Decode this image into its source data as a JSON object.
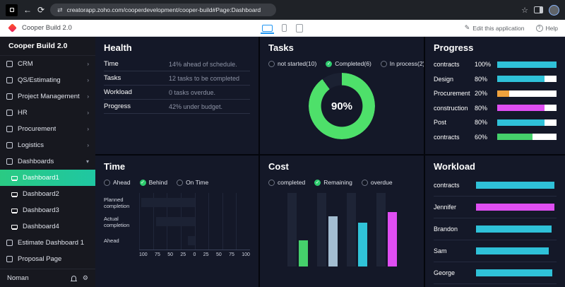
{
  "browser": {
    "url": "creatorapp.zoho.com/cooperdevelopment/cooper-build#Page:Dashboard"
  },
  "appbar": {
    "title": "Cooper Build 2.0",
    "edit_label": "Edit this application",
    "help_label": "Help"
  },
  "sidebar": {
    "title": "Cooper Build 2.0",
    "items": [
      {
        "label": "CRM",
        "icon": "crm-icon"
      },
      {
        "label": "QS/Estimating",
        "icon": "estimating-icon"
      },
      {
        "label": "Project Management",
        "icon": "project-management-icon"
      },
      {
        "label": "HR",
        "icon": "hr-icon"
      },
      {
        "label": "Procurement",
        "icon": "procurement-icon"
      },
      {
        "label": "Logistics",
        "icon": "logistics-icon"
      },
      {
        "label": "Dashboards",
        "icon": "dashboards-icon",
        "expanded": true
      }
    ],
    "dashboards": [
      {
        "label": "Dashboard1",
        "active": true
      },
      {
        "label": "Dashboard2",
        "active": false
      },
      {
        "label": "Dashboard3",
        "active": false
      },
      {
        "label": "Dashboard4",
        "active": false
      }
    ],
    "pages": [
      {
        "label": "Estimate Dashboard 1"
      },
      {
        "label": "Proposal Page"
      }
    ],
    "user": "Noman"
  },
  "panels": {
    "health": {
      "title": "Health",
      "rows": [
        {
          "label": "Time",
          "value": "14% ahead of schedule."
        },
        {
          "label": "Tasks",
          "value": "12 tasks to be completed"
        },
        {
          "label": "Workload",
          "value": "0 tasks overdue."
        },
        {
          "label": "Progress",
          "value": "42% under budget."
        }
      ]
    },
    "tasks": {
      "title": "Tasks",
      "options": [
        {
          "label": "not started(10)",
          "selected": false
        },
        {
          "label": "Completed(6)",
          "selected": true
        },
        {
          "label": "In process(2)",
          "selected": false
        }
      ],
      "donut": {
        "percent": 90,
        "label": "90%",
        "color": "#4ee06a",
        "track": "#1b2132"
      }
    },
    "progress": {
      "title": "Progress",
      "rows": [
        {
          "label": "contracts",
          "percent": "100%",
          "value": 100,
          "color": "#2fc1d8"
        },
        {
          "label": "Design",
          "percent": "80%",
          "value": 80,
          "color": "#2fc1d8"
        },
        {
          "label": "Procurement",
          "percent": "20%",
          "value": 20,
          "color": "#f0a23d"
        },
        {
          "label": "construction",
          "percent": "80%",
          "value": 80,
          "color": "#df4ef2"
        },
        {
          "label": "Post",
          "percent": "80%",
          "value": 80,
          "color": "#2fc1d8"
        },
        {
          "label": "contracts",
          "percent": "60%",
          "value": 60,
          "color": "#45d06b"
        }
      ]
    },
    "time": {
      "title": "Time",
      "options": [
        {
          "label": "Ahead",
          "selected": false
        },
        {
          "label": "Behind",
          "selected": true
        },
        {
          "label": "On Time",
          "selected": false
        }
      ],
      "categories": [
        "Planned completion",
        "Actual completion",
        "Ahead"
      ],
      "values": [
        -96,
        -70,
        -12
      ],
      "bar_color": "#1c2234",
      "ticks": [
        "100",
        "75",
        "50",
        "25",
        "0",
        "25",
        "50",
        "75",
        "100"
      ]
    },
    "cost": {
      "title": "Cost",
      "options": [
        {
          "label": "completed",
          "selected": false
        },
        {
          "label": "Remaining",
          "selected": true
        },
        {
          "label": "overdue",
          "selected": false
        }
      ],
      "total_color": "#1e2436",
      "groups": [
        {
          "total": 100,
          "value": 36,
          "color": "#45d06b"
        },
        {
          "total": 100,
          "value": 68,
          "color": "#a3bdd1"
        },
        {
          "total": 100,
          "value": 60,
          "color": "#30c3d8"
        },
        {
          "total": 100,
          "value": 74,
          "color": "#df4ef2"
        }
      ]
    },
    "workload": {
      "title": "Workload",
      "rows": [
        {
          "label": "contracts",
          "value": 97,
          "color": "#2fc1d8"
        },
        {
          "label": "Jennifer",
          "value": 97,
          "color": "#df4ef2"
        },
        {
          "label": "Brandon",
          "value": 94,
          "color": "#2fc1d8"
        },
        {
          "label": "Sam",
          "value": 90,
          "color": "#2fc1d8"
        },
        {
          "label": "George",
          "value": 95,
          "color": "#2fc1d8"
        }
      ]
    }
  }
}
